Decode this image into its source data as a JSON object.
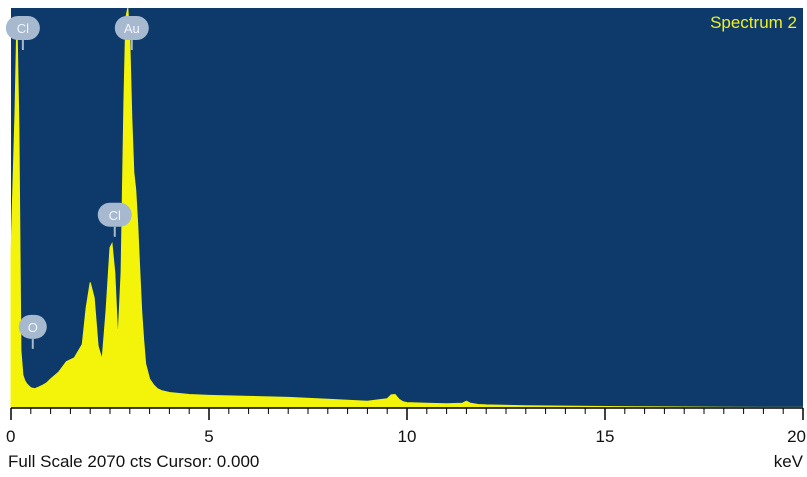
{
  "colors": {
    "plot_background": "#0d3a6b",
    "spectrum_fill": "#f4f40a",
    "title_color": "#f0f020",
    "marker_fill": "#a7b9cf",
    "axis_color": "#000000"
  },
  "status": {
    "full_scale_text": "Full Scale 2070 cts Cursor: 0.000",
    "unit_label": "keV"
  },
  "chart_data": {
    "type": "area",
    "title": "Spectrum 2",
    "xlabel": "keV",
    "ylabel": "",
    "full_scale_cts": 2070,
    "xlim": [
      0,
      20
    ],
    "ylim": [
      0,
      2070
    ],
    "xticks": [
      0,
      5,
      10,
      15,
      20
    ],
    "x_tick_labels": [
      "0",
      "5",
      "10",
      "15",
      "20"
    ],
    "grid": false,
    "legend": "none",
    "spectrum": {
      "x": [
        0.0,
        0.1,
        0.15,
        0.2,
        0.25,
        0.3,
        0.35,
        0.4,
        0.45,
        0.5,
        0.6,
        0.7,
        0.8,
        0.9,
        1.0,
        1.2,
        1.4,
        1.6,
        1.8,
        1.9,
        2.0,
        2.1,
        2.2,
        2.3,
        2.4,
        2.5,
        2.55,
        2.62,
        2.7,
        2.78,
        2.85,
        2.9,
        2.95,
        3.0,
        3.05,
        3.1,
        3.15,
        3.2,
        3.25,
        3.3,
        3.35,
        3.4,
        3.5,
        3.6,
        3.7,
        3.8,
        4.0,
        4.5,
        5.0,
        6.0,
        7.0,
        8.0,
        9.0,
        9.5,
        9.6,
        9.7,
        9.8,
        9.9,
        10.0,
        10.5,
        11.0,
        11.4,
        11.5,
        11.6,
        11.8,
        12.0,
        13.0,
        14.0,
        15.0,
        16.0,
        17.0,
        18.0,
        19.0,
        20.0
      ],
      "y": [
        800,
        1530,
        2020,
        1450,
        300,
        170,
        140,
        125,
        115,
        105,
        100,
        108,
        118,
        130,
        150,
        185,
        240,
        260,
        330,
        520,
        650,
        570,
        320,
        250,
        500,
        830,
        850,
        700,
        350,
        700,
        1580,
        2020,
        2070,
        1900,
        1500,
        1220,
        1130,
        950,
        720,
        500,
        350,
        230,
        150,
        120,
        100,
        90,
        80,
        70,
        65,
        60,
        55,
        45,
        35,
        48,
        68,
        70,
        45,
        32,
        28,
        25,
        22,
        25,
        35,
        25,
        18,
        16,
        12,
        10,
        8,
        6,
        5,
        4,
        3,
        3
      ]
    },
    "peak_labels": [
      {
        "element": "Cl",
        "x": 0.3,
        "y": 2020
      },
      {
        "element": "Au",
        "x": 3.05,
        "y": 2020
      },
      {
        "element": "Cl",
        "x": 2.62,
        "y": 1000
      },
      {
        "element": "O",
        "x": 0.55,
        "y": 420
      }
    ]
  }
}
